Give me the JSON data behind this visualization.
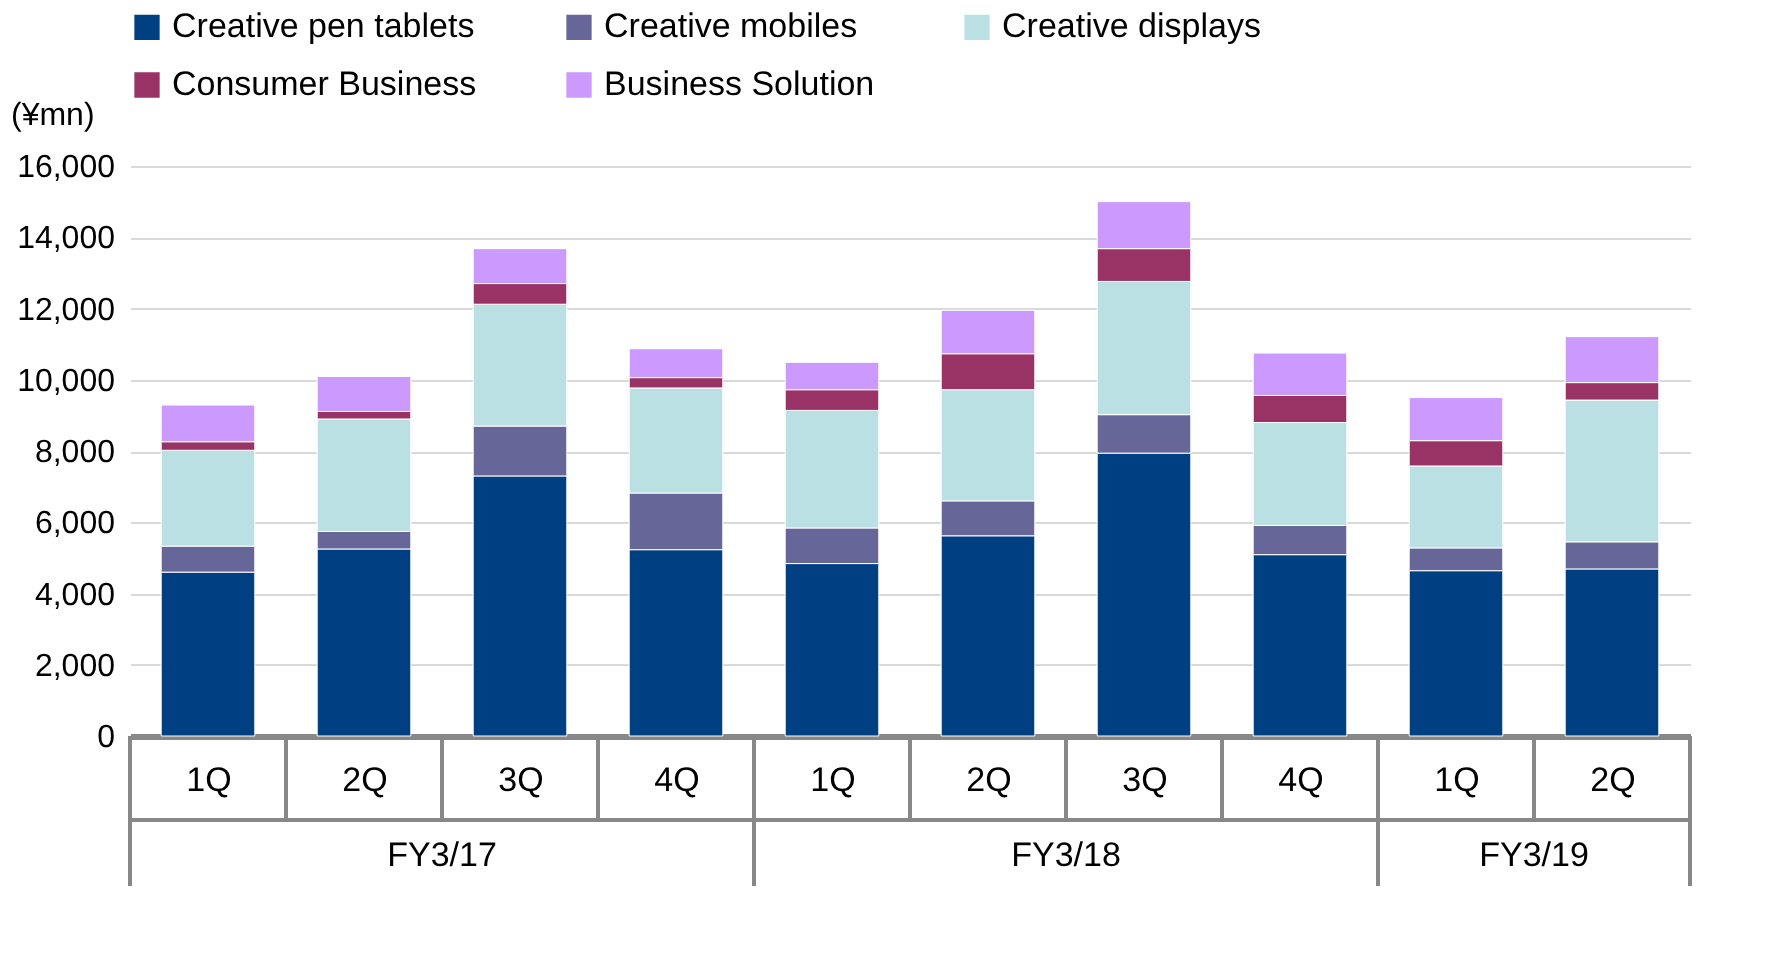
{
  "chart_data": {
    "type": "bar",
    "stacked": true,
    "ylabel": "(¥mn)",
    "categories": [
      "1Q",
      "2Q",
      "3Q",
      "4Q",
      "1Q",
      "2Q",
      "3Q",
      "4Q",
      "1Q",
      "2Q"
    ],
    "annotations": [
      "FY3/17",
      "FY3/18",
      "FY3/19"
    ],
    "ylim": [
      0,
      16000
    ],
    "yticks": [
      {
        "value": 0,
        "label": "0"
      },
      {
        "value": 2000,
        "label": "2,000"
      },
      {
        "value": 4000,
        "label": "4,000"
      },
      {
        "value": 6000,
        "label": "6,000"
      },
      {
        "value": 8000,
        "label": "8,000"
      },
      {
        "value": 10000,
        "label": "10,000"
      },
      {
        "value": 12000,
        "label": "12,000"
      },
      {
        "value": 14000,
        "label": "14,000"
      },
      {
        "value": 16000,
        "label": "16,000"
      }
    ],
    "grid": "y",
    "legend": "top",
    "series": [
      {
        "name": "Creative pen tablets",
        "color": "#003f82",
        "values": [
          4600,
          5250,
          7300,
          5230,
          4840,
          5620,
          7940,
          5090,
          4640,
          4690
        ]
      },
      {
        "name": "Creative mobiles",
        "color": "#666699",
        "values": [
          730,
          490,
          1400,
          1590,
          1000,
          980,
          1080,
          820,
          640,
          760
        ]
      },
      {
        "name": "Creative displays",
        "color": "#bbe0e3",
        "values": [
          2690,
          3160,
          3420,
          2950,
          3300,
          3120,
          3740,
          2890,
          2300,
          3980
        ]
      },
      {
        "name": "Consumer Business",
        "color": "#993366",
        "values": [
          240,
          210,
          580,
          290,
          580,
          1010,
          920,
          760,
          710,
          490
        ]
      },
      {
        "name": "Business Solution",
        "color": "#cc99ff",
        "values": [
          1030,
          980,
          980,
          810,
          770,
          1220,
          1320,
          1190,
          1210,
          1290
        ]
      }
    ]
  }
}
